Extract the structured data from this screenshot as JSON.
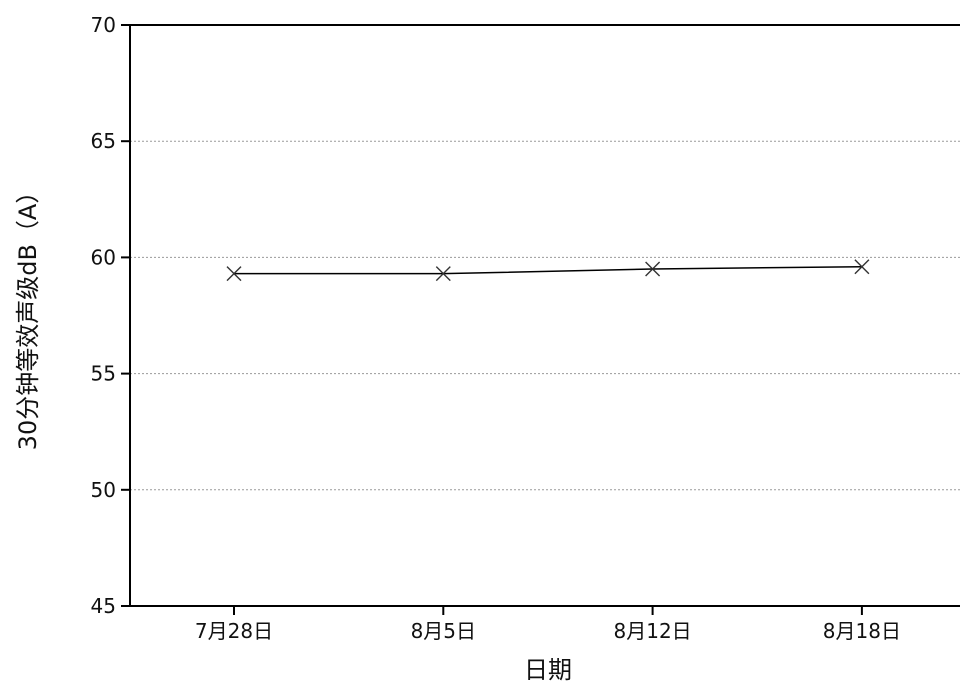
{
  "chart_data": {
    "type": "line",
    "title": "",
    "xlabel": "日期",
    "ylabel": "30分钟等效声级dB（A）",
    "categories": [
      "7月28日",
      "8月5日",
      "8月12日",
      "8月18日"
    ],
    "series": [
      {
        "values": [
          59.3,
          59.3,
          59.5,
          59.6
        ],
        "marker": "x",
        "color": "#000000"
      }
    ],
    "ylim": [
      45,
      70
    ],
    "yticks": [
      45,
      50,
      55,
      60,
      65,
      70
    ],
    "grid": "horizontal-dashed",
    "legend": "none"
  }
}
